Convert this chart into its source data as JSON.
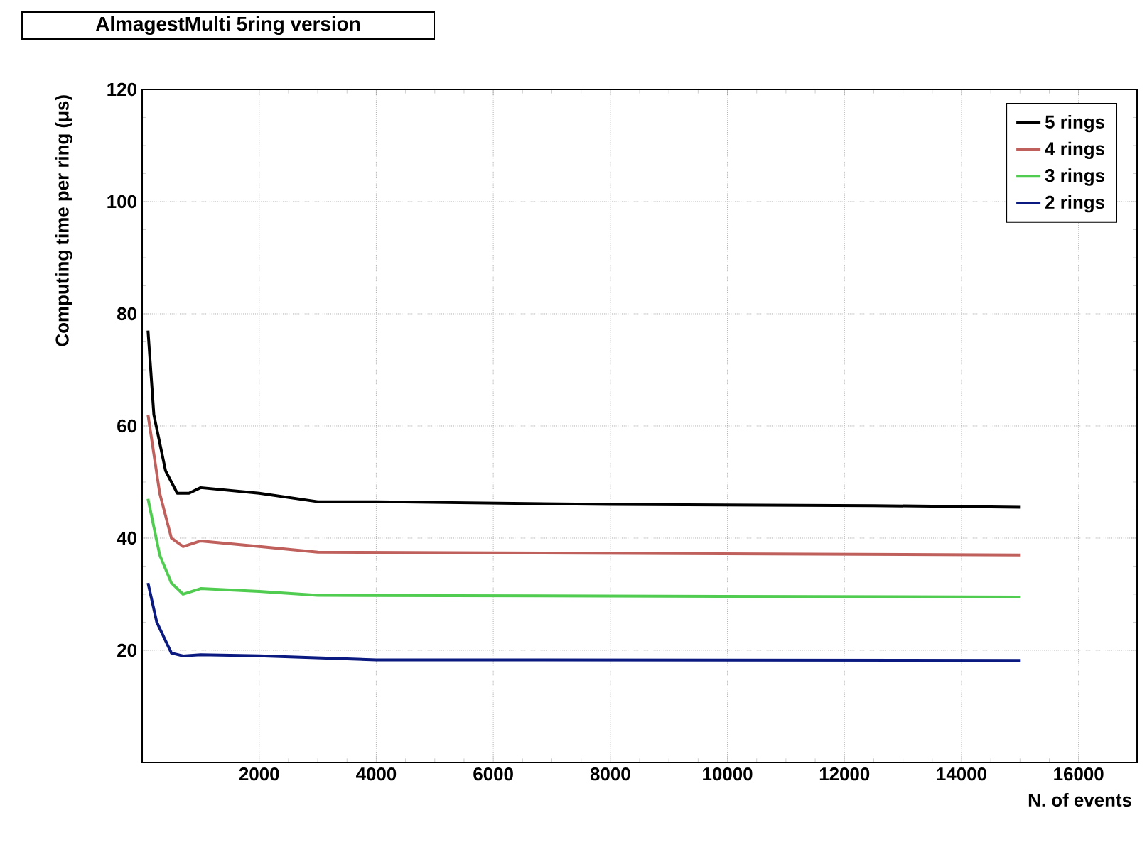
{
  "chart_data": {
    "type": "line",
    "title": "AlmagestMulti 5ring version",
    "xlabel": "N. of events",
    "ylabel": "Computing time per ring (μs)",
    "xlim": [
      0,
      17000
    ],
    "ylim": [
      0,
      120
    ],
    "xticks": [
      2000,
      4000,
      6000,
      8000,
      10000,
      12000,
      14000,
      16000
    ],
    "yticks": [
      20,
      40,
      60,
      80,
      100,
      120
    ],
    "grid": true,
    "legend": "top right",
    "marker": "none",
    "line_style": "solid",
    "series": [
      {
        "name": "5 rings",
        "color": "#000000",
        "x": [
          100,
          200,
          400,
          600,
          800,
          1000,
          2000,
          3000,
          4000,
          8000,
          12500,
          15000
        ],
        "values": [
          77,
          62,
          52,
          48,
          48,
          49,
          48,
          46.5,
          46.5,
          46,
          45.8,
          45.5
        ]
      },
      {
        "name": "4 rings",
        "color": "#c0605c",
        "x": [
          100,
          300,
          500,
          700,
          1000,
          2000,
          3000,
          15000
        ],
        "values": [
          62,
          48,
          40,
          38.5,
          39.5,
          38.5,
          37.5,
          37
        ]
      },
      {
        "name": "3 rings",
        "color": "#50cc50",
        "x": [
          100,
          300,
          500,
          700,
          1000,
          2000,
          3000,
          15000
        ],
        "values": [
          47,
          37,
          32,
          30,
          31,
          30.5,
          29.8,
          29.5
        ]
      },
      {
        "name": "2 rings",
        "color": "#0a1a80",
        "x": [
          100,
          250,
          500,
          700,
          1000,
          2000,
          4000,
          15000
        ],
        "values": [
          32,
          25,
          19.5,
          19,
          19.2,
          19,
          18.3,
          18.2
        ]
      }
    ]
  }
}
